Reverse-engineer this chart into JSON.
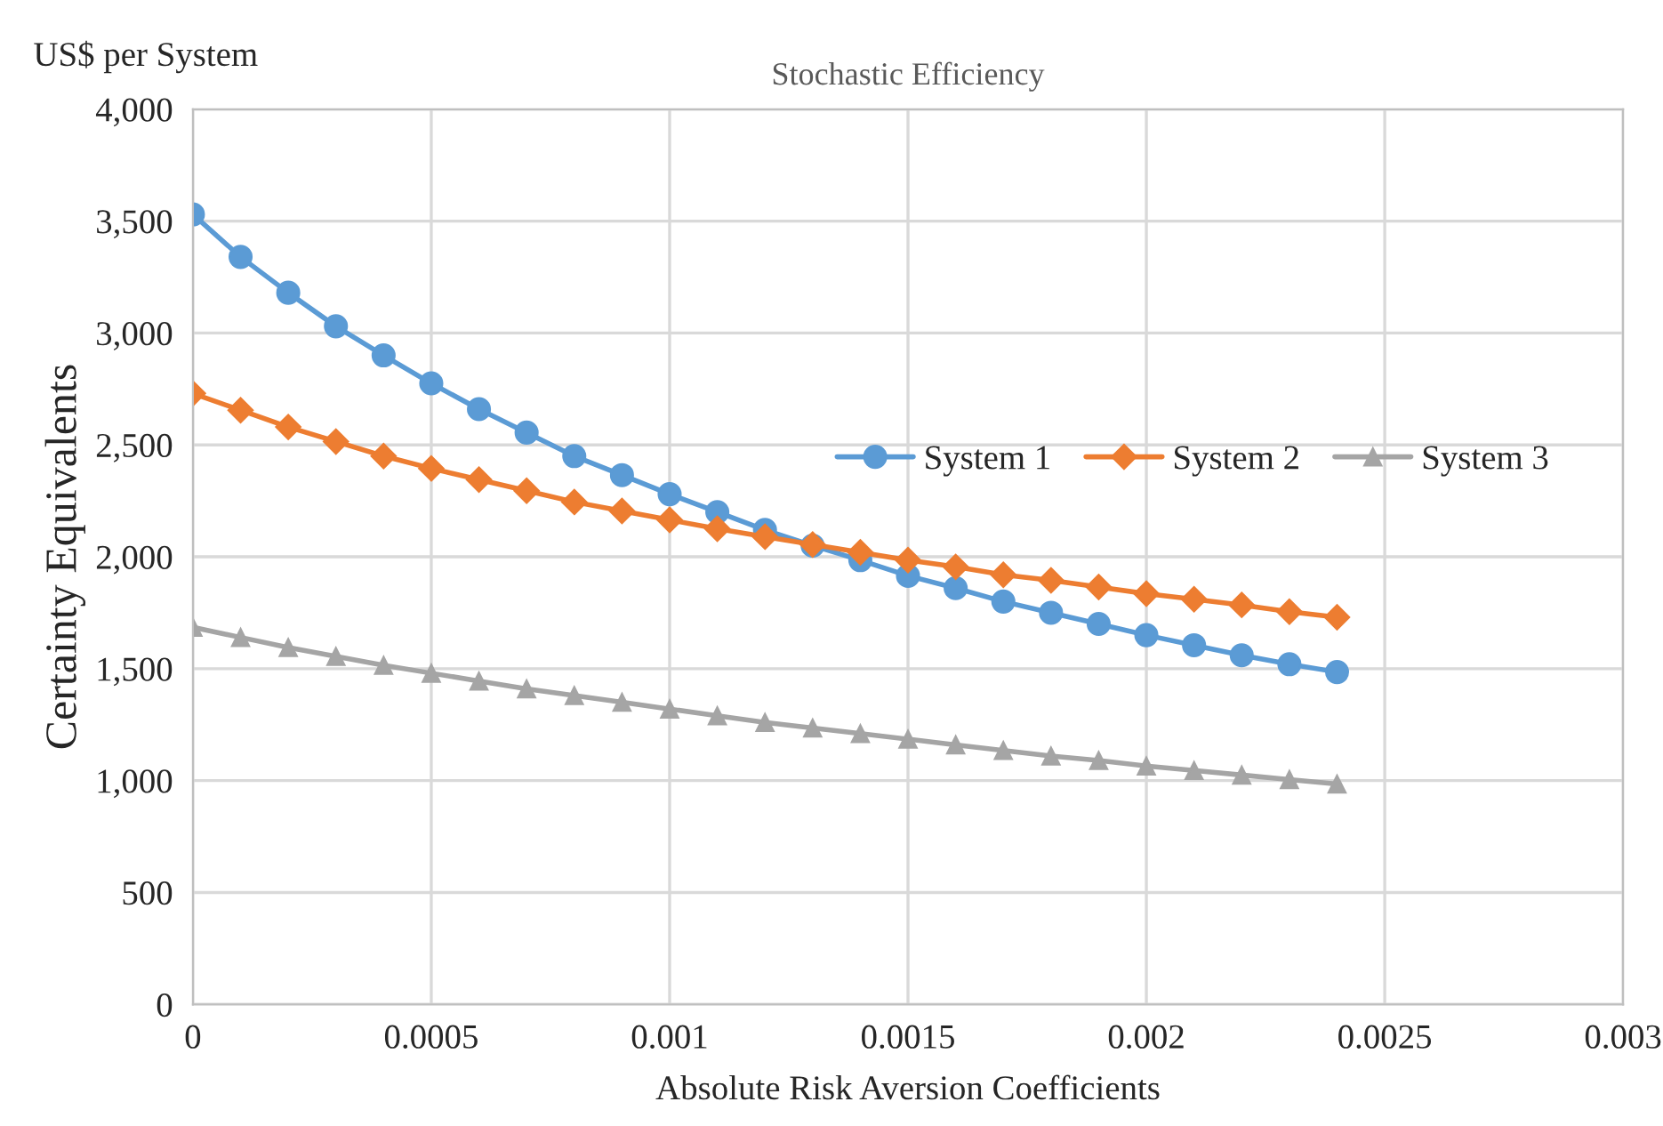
{
  "chart_data": {
    "type": "line",
    "title": "Stochastic Efficiency",
    "xlabel": "Absolute Risk Aversion Coefficients",
    "ylabel": "Certainty Equivalents",
    "annotations": [
      "US$ per System"
    ],
    "x": [
      0,
      0.0001,
      0.0002,
      0.0003,
      0.0004,
      0.0005,
      0.0006,
      0.0007,
      0.0008,
      0.0009,
      0.001,
      0.0011,
      0.0012,
      0.0013,
      0.0014,
      0.0015,
      0.0016,
      0.0017,
      0.0018,
      0.0019,
      0.002,
      0.0021,
      0.0022,
      0.0023,
      0.0024
    ],
    "series": [
      {
        "name": "System 1",
        "color": "#5b9bd5",
        "marker": "circle",
        "values": [
          3530,
          3340,
          3180,
          3030,
          2900,
          2775,
          2660,
          2555,
          2450,
          2365,
          2280,
          2200,
          2120,
          2050,
          1985,
          1915,
          1860,
          1800,
          1750,
          1700,
          1650,
          1605,
          1560,
          1520,
          1485
        ]
      },
      {
        "name": "System 2",
        "color": "#ed7d31",
        "marker": "diamond",
        "values": [
          2730,
          2655,
          2580,
          2515,
          2450,
          2395,
          2345,
          2295,
          2245,
          2205,
          2165,
          2125,
          2090,
          2055,
          2020,
          1985,
          1955,
          1920,
          1895,
          1865,
          1835,
          1810,
          1785,
          1755,
          1730
        ]
      },
      {
        "name": "System 3",
        "color": "#a5a5a5",
        "marker": "triangle",
        "values": [
          1685,
          1640,
          1595,
          1555,
          1515,
          1480,
          1445,
          1410,
          1380,
          1350,
          1320,
          1290,
          1260,
          1235,
          1210,
          1185,
          1160,
          1135,
          1110,
          1090,
          1065,
          1045,
          1025,
          1005,
          985
        ]
      }
    ],
    "xlim": [
      0,
      0.003
    ],
    "xticks": [
      0,
      0.0005,
      0.001,
      0.0015,
      0.002,
      0.0025,
      0.003
    ],
    "ylim": [
      0,
      4000
    ],
    "yticks": [
      {
        "value": 0,
        "label": "0"
      },
      {
        "value": 500,
        "label": "500"
      },
      {
        "value": 1000,
        "label": "1,000"
      },
      {
        "value": 1500,
        "label": "1,500"
      },
      {
        "value": 2000,
        "label": "2,000"
      },
      {
        "value": 2500,
        "label": "2,500"
      },
      {
        "value": 3000,
        "label": "3,000"
      },
      {
        "value": 3500,
        "label": "3,500"
      },
      {
        "value": 4000,
        "label": "4,000"
      }
    ],
    "grid": true,
    "legend": "right",
    "line_style": "solid"
  }
}
